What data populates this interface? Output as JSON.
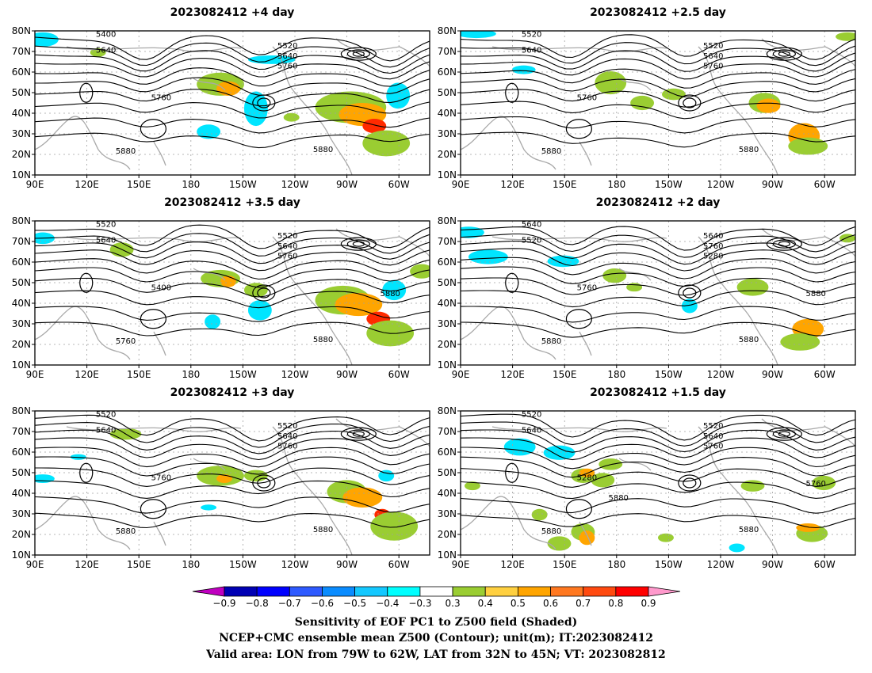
{
  "panels": [
    {
      "title": "2023082412  +4 day",
      "contour_labels": [
        "5400",
        "5640",
        "5520",
        "5640",
        "5760",
        "5760",
        "5880",
        "5880"
      ],
      "blobs": [
        [
          "green",
          0.47,
          0.37,
          0.06,
          0.08
        ],
        [
          "orange",
          0.49,
          0.4,
          0.03,
          0.05
        ],
        [
          "cyan",
          0.56,
          0.54,
          0.03,
          0.12
        ],
        [
          "cyan",
          0.44,
          0.7,
          0.03,
          0.05
        ],
        [
          "cyan",
          0.02,
          0.06,
          0.04,
          0.05
        ],
        [
          "cyan",
          0.6,
          0.2,
          0.06,
          0.03
        ],
        [
          "green",
          0.16,
          0.15,
          0.02,
          0.03
        ],
        [
          "cyan",
          0.92,
          0.45,
          0.03,
          0.09
        ],
        [
          "green",
          0.8,
          0.53,
          0.09,
          0.11
        ],
        [
          "orange",
          0.83,
          0.58,
          0.06,
          0.08
        ],
        [
          "red",
          0.86,
          0.66,
          0.03,
          0.05
        ],
        [
          "green",
          0.89,
          0.78,
          0.06,
          0.09
        ],
        [
          "green",
          0.65,
          0.6,
          0.02,
          0.03
        ]
      ]
    },
    {
      "title": "2023082412  +2.5 day",
      "contour_labels": [
        "5520",
        "5640",
        "5520",
        "5640",
        "5760",
        "5760",
        "5880",
        "5880"
      ],
      "blobs": [
        [
          "cyan",
          0.04,
          0.02,
          0.05,
          0.03
        ],
        [
          "cyan",
          0.16,
          0.27,
          0.03,
          0.03
        ],
        [
          "green",
          0.38,
          0.36,
          0.04,
          0.08
        ],
        [
          "green",
          0.46,
          0.5,
          0.03,
          0.05
        ],
        [
          "green",
          0.54,
          0.44,
          0.03,
          0.04
        ],
        [
          "green",
          0.77,
          0.5,
          0.04,
          0.07
        ],
        [
          "orange",
          0.78,
          0.52,
          0.03,
          0.05
        ],
        [
          "orange",
          0.87,
          0.73,
          0.04,
          0.09
        ],
        [
          "green",
          0.88,
          0.8,
          0.05,
          0.06
        ],
        [
          "green",
          0.98,
          0.04,
          0.03,
          0.03
        ]
      ]
    },
    {
      "title": "2023082412  +3.5 day",
      "contour_labels": [
        "5520",
        "5640",
        "5520",
        "5640",
        "5760",
        "5400",
        "5760",
        "5880",
        "5880"
      ],
      "blobs": [
        [
          "green",
          0.22,
          0.2,
          0.03,
          0.05
        ],
        [
          "green",
          0.47,
          0.4,
          0.05,
          0.06
        ],
        [
          "orange",
          0.49,
          0.42,
          0.02,
          0.04
        ],
        [
          "green",
          0.56,
          0.48,
          0.03,
          0.05
        ],
        [
          "cyan",
          0.57,
          0.62,
          0.03,
          0.07
        ],
        [
          "cyan",
          0.45,
          0.7,
          0.02,
          0.05
        ],
        [
          "cyan",
          0.02,
          0.12,
          0.03,
          0.04
        ],
        [
          "green",
          0.78,
          0.55,
          0.07,
          0.1
        ],
        [
          "orange",
          0.82,
          0.58,
          0.06,
          0.08
        ],
        [
          "red",
          0.87,
          0.68,
          0.03,
          0.05
        ],
        [
          "green",
          0.9,
          0.78,
          0.06,
          0.09
        ],
        [
          "cyan",
          0.91,
          0.48,
          0.03,
          0.07
        ],
        [
          "green",
          0.98,
          0.35,
          0.03,
          0.05
        ]
      ]
    },
    {
      "title": "2023082412  +2 day",
      "contour_labels": [
        "5640",
        "5520",
        "5640",
        "5760",
        "5280",
        "5760",
        "5880",
        "5880",
        "5880"
      ],
      "blobs": [
        [
          "cyan",
          0.07,
          0.25,
          0.05,
          0.05
        ],
        [
          "cyan",
          0.02,
          0.08,
          0.04,
          0.04
        ],
        [
          "cyan",
          0.26,
          0.28,
          0.04,
          0.04
        ],
        [
          "green",
          0.39,
          0.38,
          0.03,
          0.05
        ],
        [
          "green",
          0.44,
          0.46,
          0.02,
          0.03
        ],
        [
          "cyan",
          0.58,
          0.59,
          0.02,
          0.05
        ],
        [
          "green",
          0.74,
          0.46,
          0.04,
          0.06
        ],
        [
          "orange",
          0.88,
          0.75,
          0.04,
          0.07
        ],
        [
          "green",
          0.86,
          0.84,
          0.05,
          0.06
        ],
        [
          "green",
          0.98,
          0.12,
          0.02,
          0.03
        ]
      ]
    },
    {
      "title": "2023082412  +3 day",
      "contour_labels": [
        "5520",
        "5640",
        "5520",
        "5640",
        "5760",
        "5760",
        "5880",
        "5880"
      ],
      "blobs": [
        [
          "green",
          0.23,
          0.16,
          0.04,
          0.04
        ],
        [
          "green",
          0.47,
          0.45,
          0.06,
          0.07
        ],
        [
          "orange",
          0.48,
          0.47,
          0.02,
          0.03
        ],
        [
          "green",
          0.56,
          0.45,
          0.03,
          0.04
        ],
        [
          "cyan",
          0.11,
          0.32,
          0.02,
          0.02
        ],
        [
          "cyan",
          0.02,
          0.47,
          0.03,
          0.03
        ],
        [
          "cyan",
          0.44,
          0.67,
          0.02,
          0.02
        ],
        [
          "green",
          0.79,
          0.56,
          0.05,
          0.08
        ],
        [
          "orange",
          0.83,
          0.6,
          0.05,
          0.07
        ],
        [
          "red",
          0.88,
          0.72,
          0.02,
          0.04
        ],
        [
          "green",
          0.91,
          0.8,
          0.06,
          0.1
        ],
        [
          "cyan",
          0.89,
          0.45,
          0.02,
          0.04
        ]
      ]
    },
    {
      "title": "2023082412  +1.5 day",
      "contour_labels": [
        "5520",
        "5640",
        "5520",
        "5640",
        "5760",
        "5280",
        "5880",
        "5880",
        "5760",
        "5880"
      ],
      "blobs": [
        [
          "cyan",
          0.15,
          0.25,
          0.04,
          0.06
        ],
        [
          "cyan",
          0.25,
          0.29,
          0.04,
          0.05
        ],
        [
          "green",
          0.38,
          0.37,
          0.03,
          0.04
        ],
        [
          "green",
          0.31,
          0.45,
          0.03,
          0.05
        ],
        [
          "green",
          0.36,
          0.48,
          0.03,
          0.05
        ],
        [
          "orange",
          0.32,
          0.43,
          0.02,
          0.03
        ],
        [
          "green",
          0.31,
          0.84,
          0.03,
          0.06
        ],
        [
          "green",
          0.25,
          0.92,
          0.03,
          0.05
        ],
        [
          "orange",
          0.32,
          0.88,
          0.02,
          0.05
        ],
        [
          "green",
          0.2,
          0.72,
          0.02,
          0.04
        ],
        [
          "green",
          0.03,
          0.52,
          0.02,
          0.03
        ],
        [
          "green",
          0.89,
          0.85,
          0.04,
          0.06
        ],
        [
          "orange",
          0.88,
          0.81,
          0.03,
          0.03
        ],
        [
          "green",
          0.92,
          0.5,
          0.03,
          0.05
        ],
        [
          "green",
          0.74,
          0.52,
          0.03,
          0.04
        ],
        [
          "cyan",
          0.7,
          0.95,
          0.02,
          0.03
        ],
        [
          "green",
          0.52,
          0.88,
          0.02,
          0.03
        ]
      ]
    }
  ],
  "lat_labels": [
    "80N",
    "70N",
    "60N",
    "50N",
    "40N",
    "30N",
    "20N",
    "10N"
  ],
  "lon_labels": [
    "90E",
    "120E",
    "150E",
    "180",
    "150W",
    "120W",
    "90W",
    "60W"
  ],
  "colorbar": {
    "colors": [
      "#c000c0",
      "#0000b4",
      "#0000ff",
      "#2e5aff",
      "#0a8cff",
      "#14c8ff",
      "#00ffff",
      "#ffffff",
      "#9acd32",
      "#ffd040",
      "#ffa500",
      "#ff7820",
      "#ff4a10",
      "#ff0000",
      "#ff99cc"
    ],
    "ticks": [
      "−0.9",
      "−0.8",
      "−0.7",
      "−0.6",
      "−0.5",
      "−0.4",
      "−0.3",
      "0.3",
      "0.4",
      "0.5",
      "0.6",
      "0.7",
      "0.8",
      "0.9"
    ]
  },
  "caption": {
    "line1": "Sensitivity of EOF PC1 to Z500 field (Shaded)",
    "line2": "NCEP+CMC ensemble mean Z500 (Contour); unit(m); IT:2023082412",
    "line3": "Valid area: LON from 79W to 62W, LAT from 32N to 45N; VT: 2023082812"
  },
  "colors": {
    "contour": "#000000",
    "coast": "#a9a9a9",
    "grid": "#a0a0a0"
  }
}
